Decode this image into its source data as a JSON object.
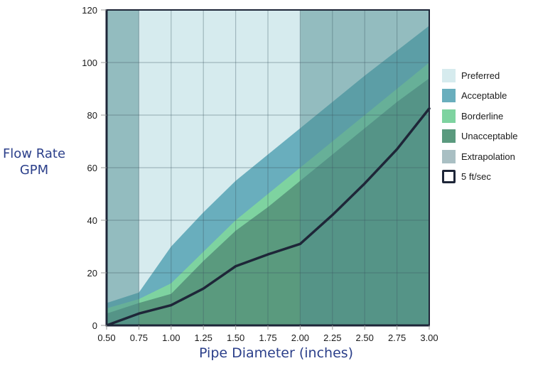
{
  "chart_data": {
    "type": "area",
    "title": "",
    "xlabel": "Pipe Diameter (inches)",
    "ylabel_lines": [
      "Flow Rate",
      "GPM"
    ],
    "xlim": [
      0.5,
      3.0
    ],
    "ylim": [
      0,
      120
    ],
    "x": [
      0.5,
      0.75,
      1.0,
      1.25,
      1.5,
      1.75,
      2.0,
      2.25,
      2.5,
      2.75,
      3.0
    ],
    "x_tick_labels": [
      "0.50",
      "0.75",
      "1.00",
      "1.25",
      "1.50",
      "1.75",
      "2.00",
      "2.25",
      "2.50",
      "2.75",
      "3.00"
    ],
    "y_ticks": [
      0,
      20,
      40,
      60,
      80,
      100,
      120
    ],
    "grid": true,
    "legend_position": "right",
    "series": [
      {
        "name": "Preferred",
        "color": "#d6ebee",
        "values": [
          120,
          120,
          120,
          120,
          120,
          120,
          120,
          120,
          120,
          120,
          120
        ]
      },
      {
        "name": "Acceptable",
        "color": "#69aebd",
        "values": [
          8.5,
          12.5,
          30,
          43,
          55,
          65,
          75,
          85,
          95,
          104.5,
          114
        ]
      },
      {
        "name": "Borderline",
        "color": "#7ed3a0",
        "values": [
          6.5,
          10,
          16,
          28,
          40,
          50,
          60,
          70,
          80,
          90,
          100
        ]
      },
      {
        "name": "Unacceptable",
        "color": "#5a9a7e",
        "values": [
          4.5,
          8.5,
          12,
          24.5,
          36,
          45,
          55,
          65,
          75,
          85,
          94
        ]
      },
      {
        "name": "5 ft/sec",
        "type": "line",
        "color": "#1e2638",
        "values": [
          0,
          4.5,
          7.7,
          14,
          22.5,
          27,
          31,
          42,
          54,
          67,
          82.5
        ]
      }
    ],
    "extrapolation": {
      "name": "Extrapolation",
      "color": "#a9bfc3",
      "ranges": [
        [
          0.5,
          0.75
        ],
        [
          2.0,
          3.0
        ]
      ]
    }
  },
  "axes": {
    "ylabel_line1": "Flow Rate",
    "ylabel_line2": "GPM",
    "xlabel": "Pipe Diameter (inches)"
  },
  "legend": {
    "items": [
      {
        "label": "Preferred",
        "color": "#d6ebee",
        "style": "fill"
      },
      {
        "label": "Acceptable",
        "color": "#69aebd",
        "style": "fill"
      },
      {
        "label": "Borderline",
        "color": "#7ed3a0",
        "style": "fill"
      },
      {
        "label": "Unacceptable",
        "color": "#5a9a7e",
        "style": "fill"
      },
      {
        "label": "Extrapolation",
        "color": "#a9bfc3",
        "style": "fill"
      },
      {
        "label": "5 ft/sec",
        "color": "#1e2638",
        "style": "outline"
      }
    ]
  }
}
